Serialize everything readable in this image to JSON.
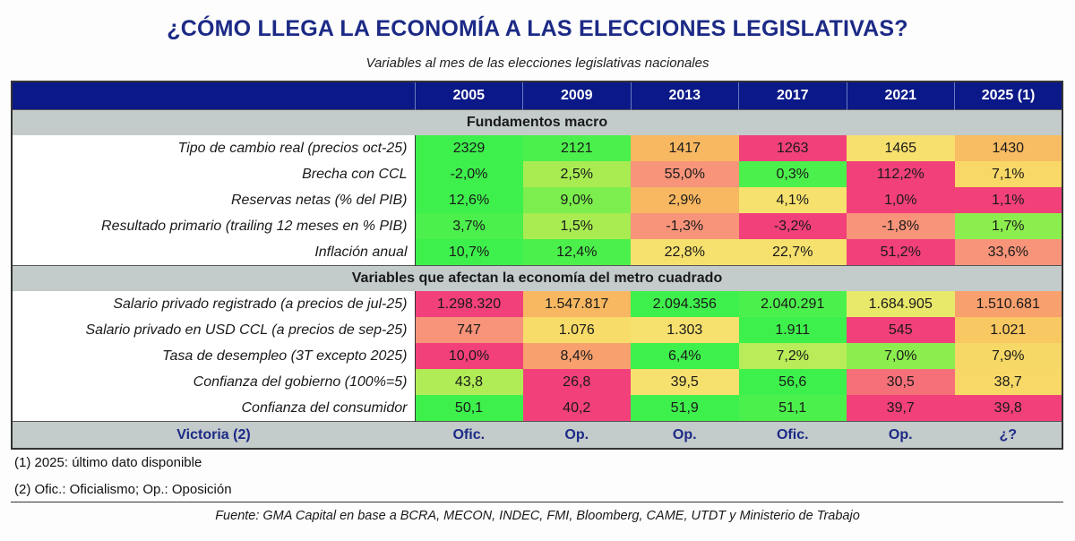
{
  "title": "¿CÓMO LLEGA LA ECONOMÍA A LAS ELECCIONES LEGISLATIVAS?",
  "subtitle": "Variables al mes de las elecciones legislativas nacionales",
  "chart_data": {
    "type": "table",
    "columns": [
      "2005",
      "2009",
      "2013",
      "2017",
      "2021",
      "2025 (1)"
    ],
    "sections": [
      {
        "title": "Fundamentos macro",
        "rows": [
          {
            "label": "Tipo de cambio real (precios oct-25)",
            "values": [
              "2329",
              "2121",
              "1417",
              "1263",
              "1465",
              "1430"
            ],
            "colors": [
              "#3ef04c",
              "#4cf04c",
              "#f8b862",
              "#f2407a",
              "#f8e06e",
              "#f8bc62"
            ]
          },
          {
            "label": "Brecha con CCL",
            "values": [
              "-2,0%",
              "2,5%",
              "55,0%",
              "0,3%",
              "112,2%",
              "7,1%"
            ],
            "colors": [
              "#3ef04c",
              "#a8ec52",
              "#f8947a",
              "#4cf04c",
              "#f2407a",
              "#f8d866"
            ]
          },
          {
            "label": "Reservas netas (% del PIB)",
            "values": [
              "12,6%",
              "9,0%",
              "2,9%",
              "4,1%",
              "1,0%",
              "1,1%"
            ],
            "colors": [
              "#3ef04c",
              "#7cee4e",
              "#f8b862",
              "#f6e06e",
              "#f2407a",
              "#f2407a"
            ]
          },
          {
            "label": "Resultado primario (trailing 12 meses en % PIB)",
            "values": [
              "3,7%",
              "1,5%",
              "-1,3%",
              "-3,2%",
              "-1,8%",
              "1,7%"
            ],
            "colors": [
              "#4cf04c",
              "#a8ec52",
              "#f8947a",
              "#f2407a",
              "#f8947a",
              "#8cee4e"
            ]
          },
          {
            "label": "Inflación anual",
            "values": [
              "10,7%",
              "12,4%",
              "22,8%",
              "22,7%",
              "51,2%",
              "33,6%"
            ],
            "colors": [
              "#3ef04c",
              "#4cf04c",
              "#f6e06e",
              "#f6e06e",
              "#f2407a",
              "#f8947a"
            ]
          }
        ]
      },
      {
        "title": "Variables que afectan la economía del metro cuadrado",
        "rows": [
          {
            "label": "Salario privado registrado (a precios de jul-25)",
            "values": [
              "1.298.320",
              "1.547.817",
              "2.094.356",
              "2.040.291",
              "1.684.905",
              "1.510.681"
            ],
            "colors": [
              "#f2407a",
              "#f8b862",
              "#3ef04c",
              "#4cf04c",
              "#e8e86a",
              "#f8a06e"
            ]
          },
          {
            "label": "Salario privado en USD CCL (a precios de sep-25)",
            "values": [
              "747",
              "1.076",
              "1.303",
              "1.911",
              "545",
              "1.021"
            ],
            "colors": [
              "#f8947a",
              "#f8dc6a",
              "#f6e06e",
              "#3ef04c",
              "#f2407a",
              "#f8c862"
            ]
          },
          {
            "label": "Tasa de desempleo (3T excepto 2025)",
            "values": [
              "10,0%",
              "8,4%",
              "6,4%",
              "7,2%",
              "7,0%",
              "7,9%"
            ],
            "colors": [
              "#f2407a",
              "#f8a06e",
              "#3ef04c",
              "#b8ec58",
              "#8cee4e",
              "#f6d866"
            ]
          },
          {
            "label": "Confianza del gobierno (100%=5)",
            "values": [
              "43,8",
              "26,8",
              "39,5",
              "56,6",
              "30,5",
              "38,7"
            ],
            "colors": [
              "#b0ec56",
              "#f2407a",
              "#f6e06e",
              "#3ef04c",
              "#f6707a",
              "#f8d866"
            ]
          },
          {
            "label": "Confianza del consumidor",
            "values": [
              "50,1",
              "40,2",
              "51,9",
              "51,1",
              "39,7",
              "39,8"
            ],
            "colors": [
              "#3ef04c",
              "#f2407a",
              "#3ef04c",
              "#4cf04c",
              "#f2407a",
              "#f2407a"
            ]
          }
        ]
      }
    ],
    "footer_row": {
      "label": "Victoria (2)",
      "values": [
        "Ofic.",
        "Op.",
        "Op.",
        "Ofic.",
        "Op.",
        "¿?"
      ]
    }
  },
  "colors": {
    "header": "#0b1888",
    "section": "#c3cbcb",
    "title": "#1c2a86"
  },
  "notes": [
    "(1) 2025: último dato disponible",
    "(2) Ofic.: Oficialismo; Op.: Oposición"
  ],
  "source": "Fuente: GMA Capital en base a BCRA, MECON, INDEC, FMI, Bloomberg, CAME, UTDT y Ministerio de Trabajo"
}
